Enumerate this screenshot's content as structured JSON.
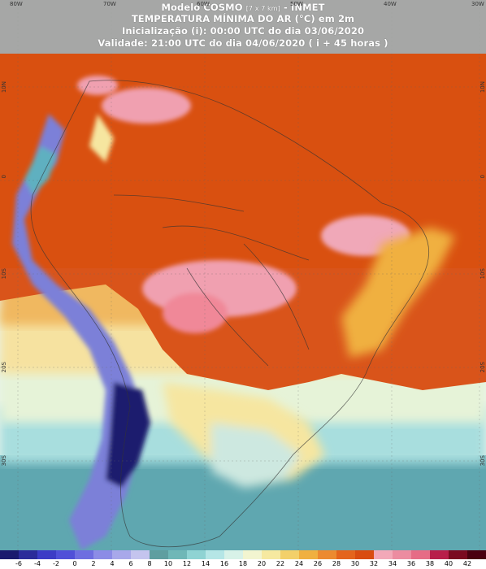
{
  "header": {
    "line1_model": "Modelo COSMO",
    "line1_res": "[7 x 7 km]",
    "line1_org": "- INMET",
    "line2": "TEMPERATURA MÍNIMA DO AR (°C) em 2m",
    "line3": "Inicialização (i): 00:00 UTC do dia 03/06/2020",
    "line4": "Validade: 21:00 UTC do dia 04/06/2020 ( i + 45 horas )"
  },
  "lon_labels": [
    "80W",
    "70W",
    "60W",
    "50W",
    "40W",
    "30W"
  ],
  "lat_labels_left": [
    "10N",
    "0",
    "10S",
    "20S",
    "30S"
  ],
  "lat_labels_right": [
    "10N",
    "0",
    "10S",
    "20S",
    "30S"
  ],
  "colorbar": {
    "ticks": [
      "-6",
      "-4",
      "-2",
      "0",
      "2",
      "4",
      "6",
      "8",
      "10",
      "12",
      "14",
      "16",
      "18",
      "20",
      "22",
      "24",
      "26",
      "28",
      "30",
      "32",
      "34",
      "36",
      "38",
      "40",
      "42"
    ],
    "colors": [
      "#1a1a6e",
      "#2b2b9a",
      "#3c3cc6",
      "#5050d8",
      "#6e6ee0",
      "#8c8ce6",
      "#a8a8ea",
      "#c4c4ee",
      "#5f9ea0",
      "#6fb7b7",
      "#8fd3d3",
      "#b5e6e6",
      "#d8f2e8",
      "#f2f5d0",
      "#f6e9a0",
      "#f3d06a",
      "#f0b040",
      "#ec8a30",
      "#e4641c",
      "#d94c10",
      "#f2a8b8",
      "#ec8ca0",
      "#e66c86",
      "#b81e4a",
      "#7a0a20",
      "#4a0010"
    ]
  },
  "colors": {
    "hot": "#d95410",
    "pink": "#f0a0b0",
    "warm": "#f0a550",
    "cool": "#8fd3d3",
    "cold": "#1a1a6e",
    "ocean_north": "#d95410"
  }
}
